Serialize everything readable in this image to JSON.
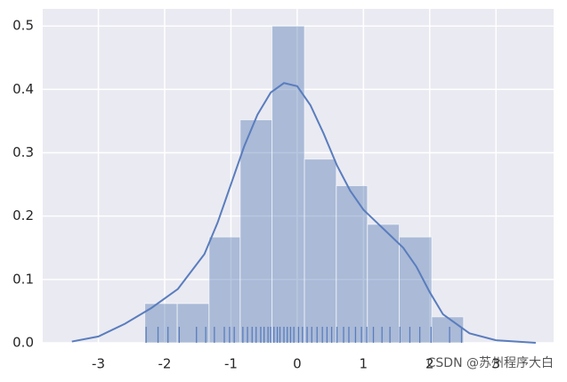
{
  "chart_data": {
    "type": "histogram",
    "bins": [
      -2.3,
      -1.81,
      -1.33,
      -0.86,
      -0.38,
      0.11,
      0.59,
      1.06,
      1.54,
      2.03,
      2.51
    ],
    "values": [
      0.062,
      0.062,
      0.167,
      0.352,
      0.5,
      0.29,
      0.248,
      0.187,
      0.167,
      0.041
    ],
    "color": "#4c72b0",
    "kde": {
      "color": "#5a7dbd",
      "x": [
        -3.4,
        -3.0,
        -2.6,
        -2.2,
        -1.8,
        -1.4,
        -1.2,
        -1.0,
        -0.8,
        -0.6,
        -0.4,
        -0.2,
        0.0,
        0.2,
        0.4,
        0.6,
        0.8,
        1.0,
        1.2,
        1.4,
        1.6,
        1.8,
        2.0,
        2.2,
        2.6,
        3.0,
        3.6
      ],
      "y": [
        0.002,
        0.01,
        0.03,
        0.055,
        0.085,
        0.14,
        0.19,
        0.25,
        0.31,
        0.36,
        0.395,
        0.41,
        0.405,
        0.375,
        0.33,
        0.28,
        0.24,
        0.21,
        0.19,
        0.17,
        0.15,
        0.12,
        0.08,
        0.045,
        0.015,
        0.004,
        0.0
      ]
    },
    "rug": [
      -2.28,
      -2.1,
      -1.95,
      -1.78,
      -1.52,
      -1.38,
      -1.25,
      -1.1,
      -1.02,
      -0.95,
      -0.82,
      -0.75,
      -0.68,
      -0.62,
      -0.55,
      -0.5,
      -0.44,
      -0.4,
      -0.35,
      -0.3,
      -0.26,
      -0.2,
      -0.15,
      -0.1,
      -0.05,
      0.02,
      0.08,
      0.15,
      0.22,
      0.3,
      0.38,
      0.45,
      0.52,
      0.6,
      0.7,
      0.78,
      0.88,
      0.97,
      1.05,
      1.15,
      1.28,
      1.4,
      1.55,
      1.7,
      1.85,
      2.02,
      2.3,
      2.48
    ],
    "xlim": [
      -3.84,
      3.87
    ],
    "ylim": [
      0,
      0.527
    ],
    "xticks": [
      -3,
      -2,
      -1,
      0,
      1,
      2,
      3
    ],
    "yticks": [
      {
        "value": 0,
        "label": "0.0"
      },
      0.1,
      0.2,
      0.3,
      0.4,
      0.5
    ],
    "grid": true,
    "watermark": "CSDN @苏州程序大白"
  }
}
